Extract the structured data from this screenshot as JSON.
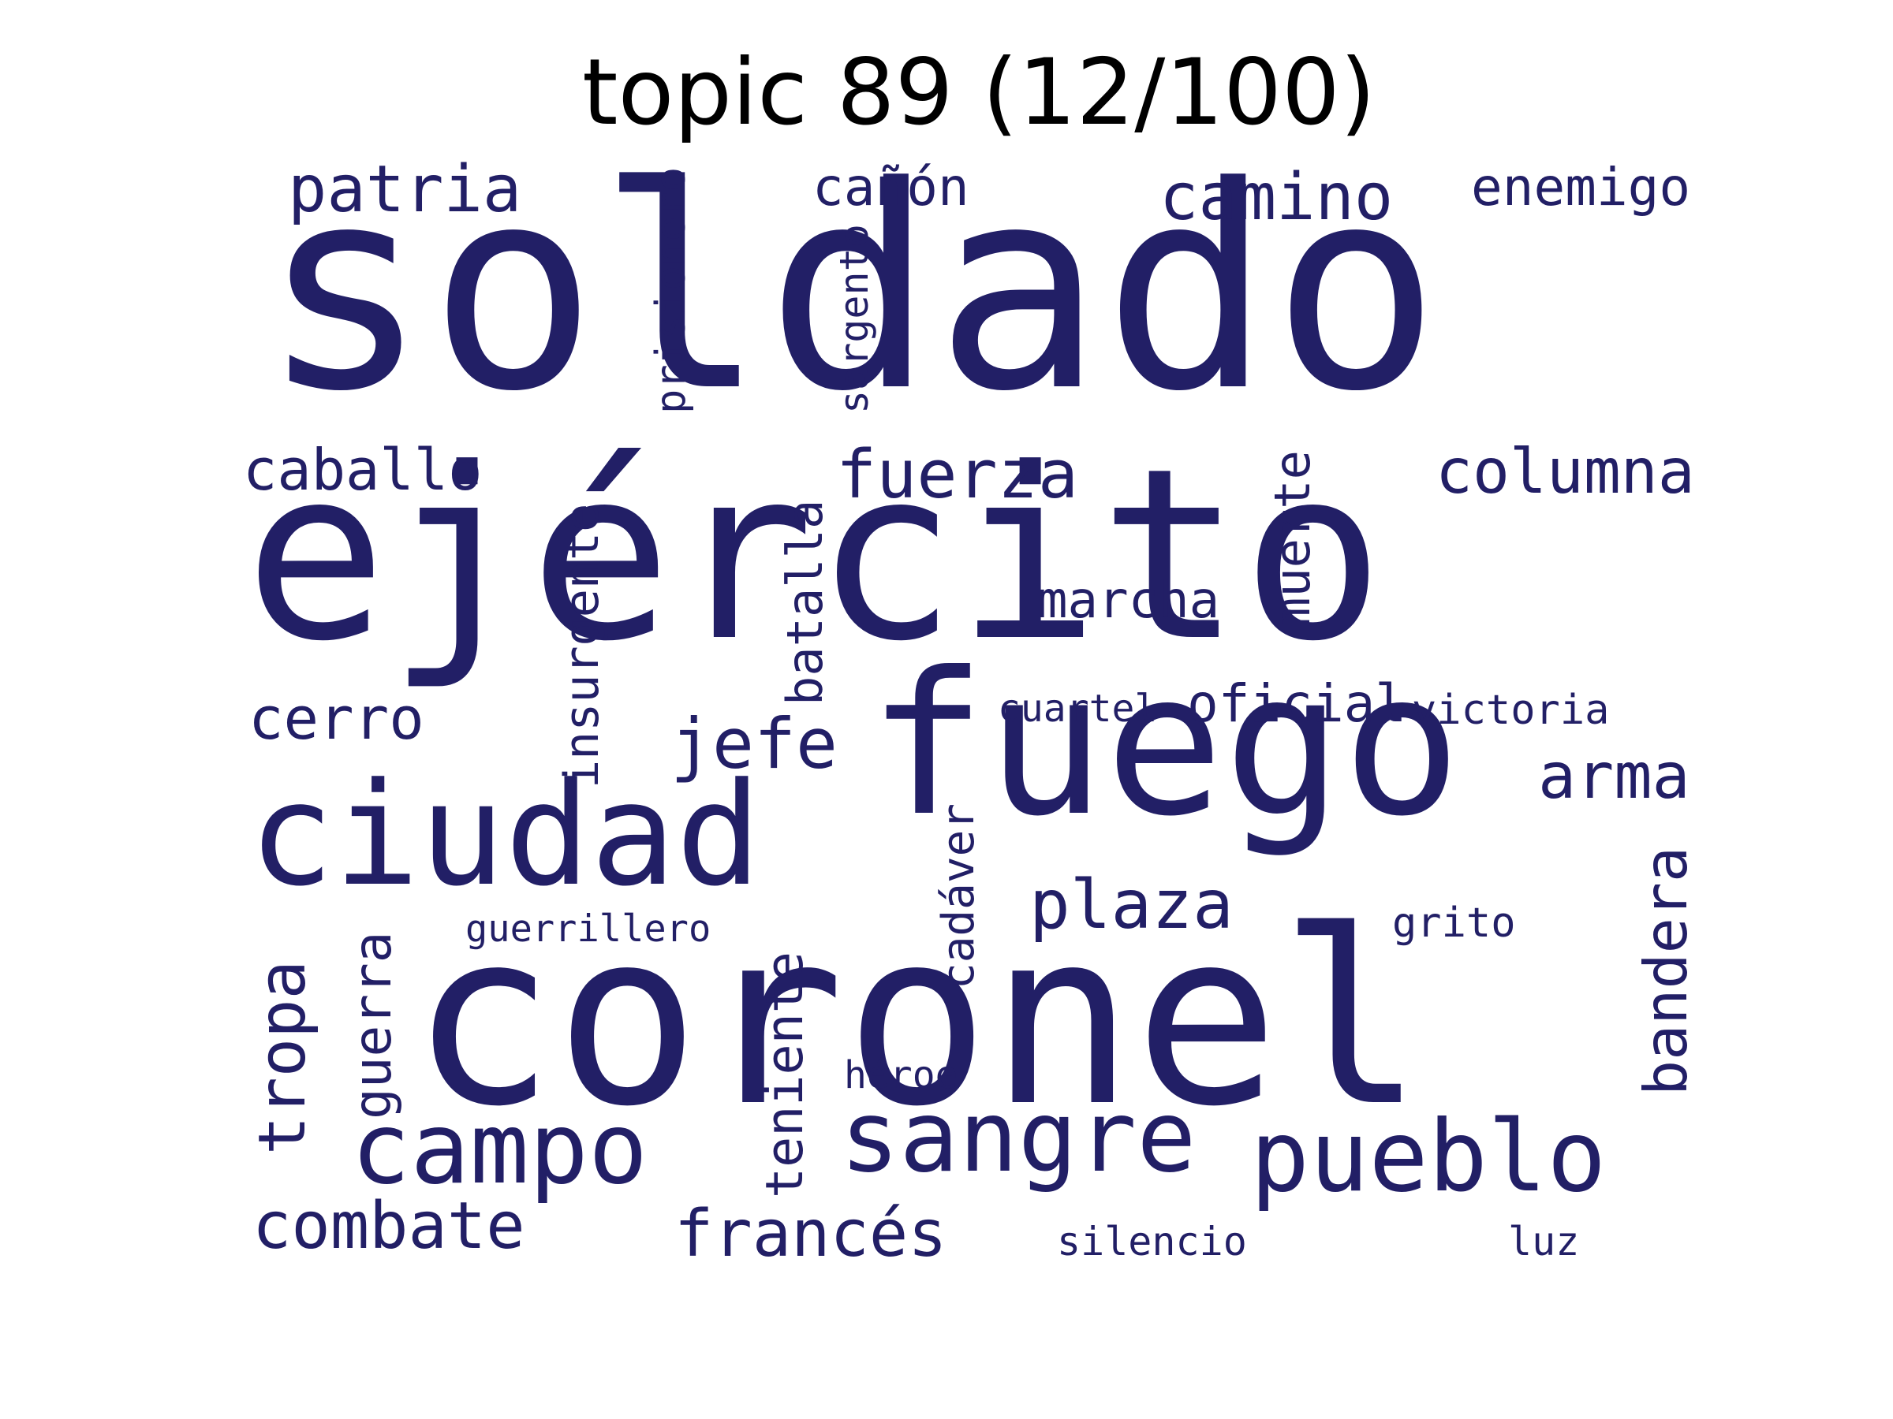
{
  "title": "topic 89 (12/100)",
  "word_color": "#221f66",
  "title_color": "#000000",
  "words": [
    "soldado",
    "ejército",
    "coronel",
    "fuego",
    "ciudad",
    "pueblo",
    "sangre",
    "campo",
    "patria",
    "camino",
    "enemigo",
    "cañón",
    "prisionero",
    "sargento",
    "caballo",
    "fuerza",
    "columna",
    "insurgente",
    "batalla",
    "muerte",
    "marcha",
    "cerro",
    "jefe",
    "cuartel",
    "oficial",
    "victoria",
    "arma",
    "cadáver",
    "plaza",
    "bandera",
    "tropa",
    "guerra",
    "guerrillero",
    "grito",
    "teniente",
    "héroe",
    "combate",
    "francés",
    "silencio",
    "luz"
  ]
}
